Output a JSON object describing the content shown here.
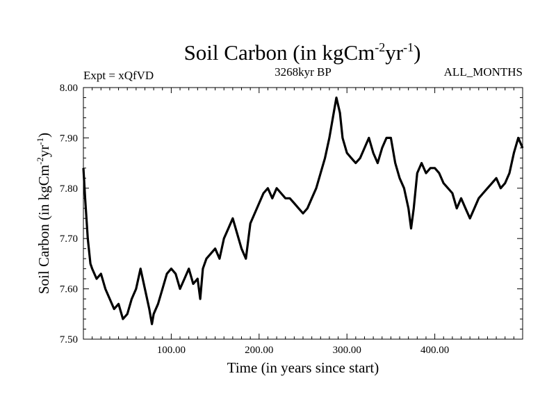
{
  "header": {
    "title_main": "Soil Carbon (in kgCm",
    "title_sup1": "-2",
    "title_mid": "yr",
    "title_sup2": "-1",
    "title_end": ")",
    "left_label": "Expt = xQfVD",
    "center_label": "3268kyr BP",
    "right_label": "ALL_MONTHS"
  },
  "chart_data": {
    "type": "line",
    "title": "Soil Carbon (in kgCm-2yr-1)",
    "xlabel": "Time (in years since start)",
    "ylabel": "Soil Carbon (in kgCm-2yr-1)",
    "xlim": [
      0,
      500
    ],
    "ylim": [
      7.5,
      8.0
    ],
    "x_ticks": [
      100,
      200,
      300,
      400
    ],
    "x_tick_labels": [
      "100.00",
      "200.00",
      "300.00",
      "400.00"
    ],
    "y_ticks": [
      7.5,
      7.6,
      7.7,
      7.8,
      7.9,
      8.0
    ],
    "y_tick_labels": [
      "7.50",
      "7.60",
      "7.70",
      "7.80",
      "7.90",
      "8.00"
    ],
    "grid": false,
    "series": [
      {
        "color": "#000000",
        "x": [
          0,
          2,
          5,
          8,
          10,
          15,
          20,
          25,
          30,
          35,
          40,
          45,
          50,
          55,
          60,
          65,
          70,
          75,
          78,
          80,
          85,
          90,
          95,
          100,
          105,
          110,
          115,
          120,
          125,
          130,
          133,
          136,
          140,
          145,
          150,
          155,
          160,
          165,
          170,
          175,
          180,
          185,
          190,
          195,
          200,
          205,
          210,
          215,
          220,
          225,
          230,
          235,
          240,
          245,
          250,
          255,
          260,
          265,
          270,
          275,
          280,
          285,
          288,
          292,
          295,
          300,
          305,
          310,
          315,
          320,
          325,
          330,
          335,
          340,
          345,
          350,
          355,
          360,
          365,
          370,
          373,
          376,
          380,
          385,
          390,
          395,
          400,
          405,
          410,
          415,
          420,
          425,
          430,
          435,
          440,
          445,
          450,
          455,
          460,
          465,
          470,
          475,
          480,
          485,
          490,
          495,
          500
        ],
        "y": [
          7.84,
          7.78,
          7.7,
          7.65,
          7.64,
          7.62,
          7.63,
          7.6,
          7.58,
          7.56,
          7.57,
          7.54,
          7.55,
          7.58,
          7.6,
          7.64,
          7.6,
          7.56,
          7.53,
          7.55,
          7.57,
          7.6,
          7.63,
          7.64,
          7.63,
          7.6,
          7.62,
          7.64,
          7.61,
          7.62,
          7.58,
          7.64,
          7.66,
          7.67,
          7.68,
          7.66,
          7.7,
          7.72,
          7.74,
          7.71,
          7.68,
          7.66,
          7.73,
          7.75,
          7.77,
          7.79,
          7.8,
          7.78,
          7.8,
          7.79,
          7.78,
          7.78,
          7.77,
          7.76,
          7.75,
          7.76,
          7.78,
          7.8,
          7.83,
          7.86,
          7.9,
          7.95,
          7.98,
          7.95,
          7.9,
          7.87,
          7.86,
          7.85,
          7.86,
          7.88,
          7.9,
          7.87,
          7.85,
          7.88,
          7.9,
          7.9,
          7.85,
          7.82,
          7.8,
          7.76,
          7.72,
          7.76,
          7.83,
          7.85,
          7.83,
          7.84,
          7.84,
          7.83,
          7.81,
          7.8,
          7.79,
          7.76,
          7.78,
          7.76,
          7.74,
          7.76,
          7.78,
          7.79,
          7.8,
          7.81,
          7.82,
          7.8,
          7.81,
          7.83,
          7.87,
          7.9,
          7.88
        ]
      }
    ]
  }
}
